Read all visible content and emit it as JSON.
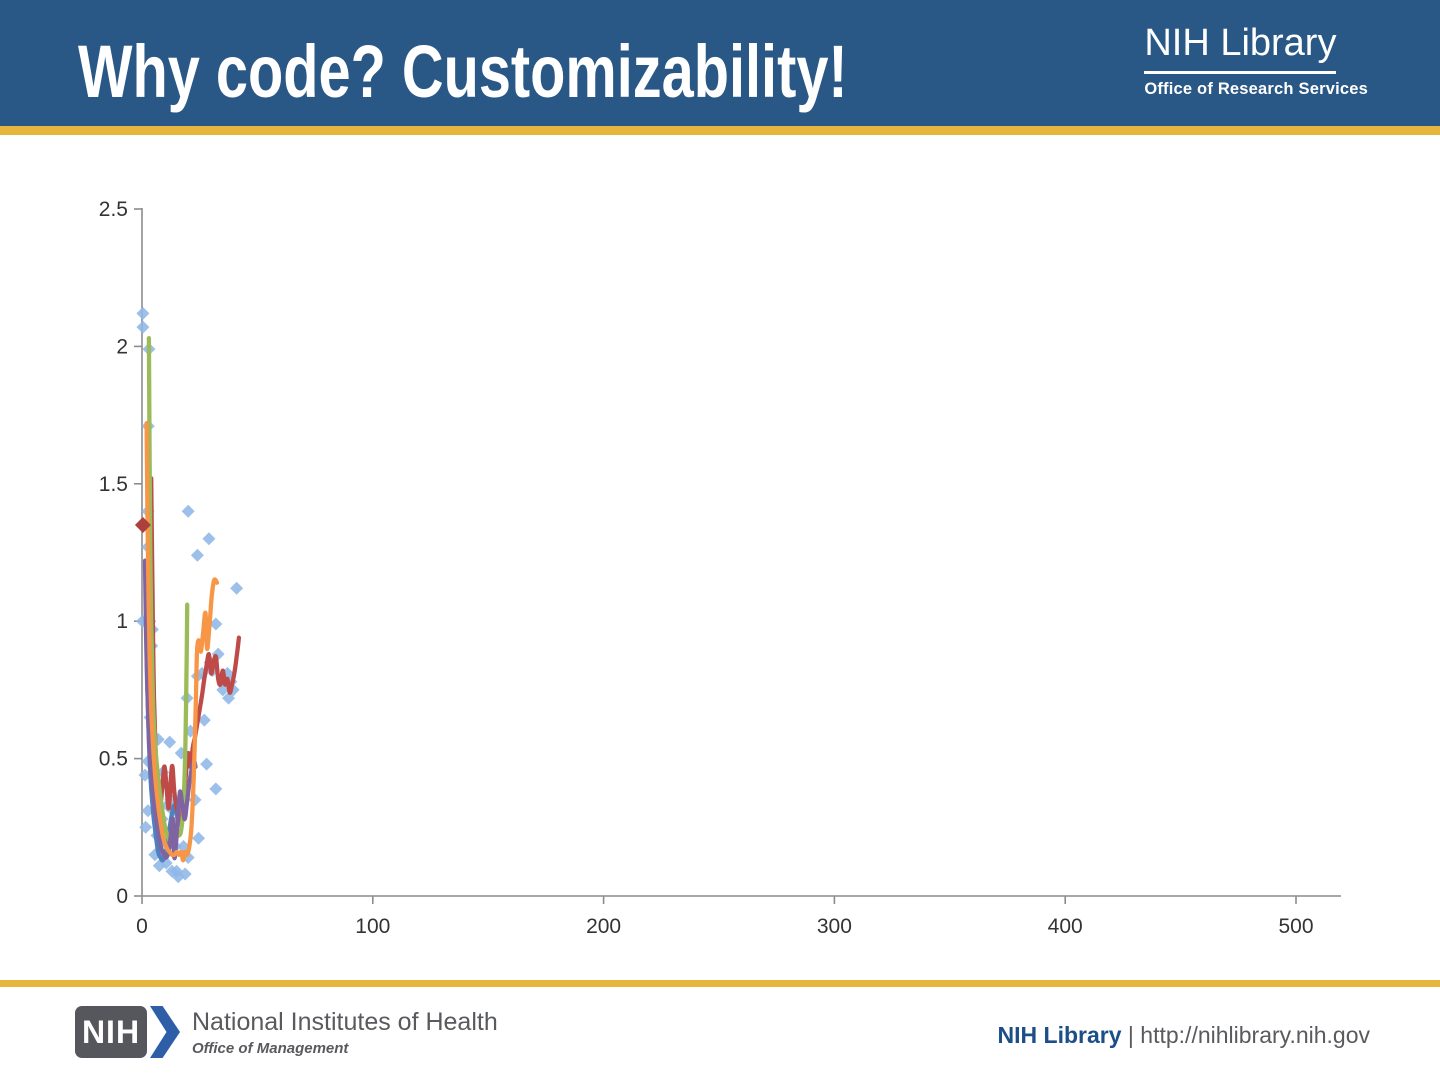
{
  "slide": {
    "title": "Why code? Customizability!",
    "header_logo": {
      "name": "NIH Library",
      "subtitle": "Office of Research Services"
    },
    "footer": {
      "nih_acronym": "NIH",
      "org_name": "National Institutes of Health",
      "org_subtitle": "Office of Management",
      "brand": "NIH Library",
      "separator": " | ",
      "url": "http://nihlibrary.nih.gov"
    },
    "colors": {
      "header_bg": "#2A5886",
      "accent_gold": "#E7B53D",
      "footer_logo_gray": "#56575C",
      "footer_text_gray": "#595A5E",
      "footer_brand_blue": "#1C4E88",
      "nih_chevron_blue": "#2E5EA8"
    }
  },
  "chart_data": {
    "type": "scatter",
    "title": "",
    "xlabel": "",
    "ylabel": "",
    "xlim": [
      0,
      520
    ],
    "ylim": [
      0,
      2.5
    ],
    "grid": false,
    "legend": "none",
    "x_ticks": [
      0,
      100,
      200,
      300,
      400,
      500
    ],
    "x_tick_labels": [
      "0",
      "100",
      "200",
      "300",
      "400",
      "500"
    ],
    "y_ticks": [
      0,
      0.5,
      1,
      1.5,
      2,
      2.5
    ],
    "y_tick_labels": [
      "0",
      "0.5",
      "1",
      "1.5",
      "2",
      "2.5"
    ],
    "axis_color": "#8C8C8C",
    "tick_label_color": "#333333",
    "line_width": 4.3,
    "series": [
      {
        "name": "scatter-observations",
        "type": "scatter",
        "marker": "diamond",
        "marker_half": 6.5,
        "opacity": 0.88,
        "color": "#8EB7E7",
        "points": [
          [
            0.4,
            2.12
          ],
          [
            0.4,
            2.07
          ],
          [
            3,
            1.99
          ],
          [
            2.7,
            1.71
          ],
          [
            2.6,
            1.4
          ],
          [
            2.6,
            1.27
          ],
          [
            0.2,
            1.0
          ],
          [
            3.4,
            1.0
          ],
          [
            4.5,
            0.97
          ],
          [
            4.2,
            0.91
          ],
          [
            3.5,
            0.65
          ],
          [
            2.6,
            0.49
          ],
          [
            1.3,
            0.44
          ],
          [
            2.6,
            0.31
          ],
          [
            1.6,
            0.25
          ],
          [
            5.6,
            0.15
          ],
          [
            6.5,
            0.22
          ],
          [
            7,
            0.57
          ],
          [
            7.5,
            0.11
          ],
          [
            8.7,
            0.28
          ],
          [
            9,
            0.45
          ],
          [
            9.5,
            0.2
          ],
          [
            10.5,
            0.12
          ],
          [
            11,
            0.33
          ],
          [
            12,
            0.56
          ],
          [
            12.5,
            0.35
          ],
          [
            13,
            0.09
          ],
          [
            13.5,
            0.31
          ],
          [
            14.5,
            0.18
          ],
          [
            15,
            0.09
          ],
          [
            15.7,
            0.07
          ],
          [
            16,
            0.28
          ],
          [
            17,
            0.52
          ],
          [
            18,
            0.18
          ],
          [
            18.7,
            0.08
          ],
          [
            19.5,
            0.72
          ],
          [
            20,
            0.14
          ],
          [
            21,
            0.6
          ],
          [
            23,
            0.35
          ],
          [
            20,
            1.4
          ],
          [
            24,
            1.24
          ],
          [
            24,
            0.8
          ],
          [
            24.5,
            0.21
          ],
          [
            26,
            0.81
          ],
          [
            27,
            0.64
          ],
          [
            28,
            0.48
          ],
          [
            29,
            1.3
          ],
          [
            29.5,
            0.85
          ],
          [
            30.5,
            0.82
          ],
          [
            32,
            0.99
          ],
          [
            32,
            0.39
          ],
          [
            33,
            0.88
          ],
          [
            35,
            0.75
          ],
          [
            37,
            0.81
          ],
          [
            37.5,
            0.72
          ],
          [
            38.5,
            0.78
          ],
          [
            39.5,
            0.75
          ],
          [
            41,
            1.12
          ]
        ]
      },
      {
        "name": "line-blue",
        "type": "line",
        "color": "#4F81BD",
        "points": [
          [
            2,
            0.9
          ],
          [
            2.5,
            0.7
          ],
          [
            3,
            0.56
          ],
          [
            3.5,
            0.46
          ],
          [
            4,
            0.39
          ],
          [
            5,
            0.29
          ],
          [
            6,
            0.22
          ],
          [
            7,
            0.16
          ],
          [
            8,
            0.14
          ],
          [
            9,
            0.13
          ],
          [
            10,
            0.15
          ],
          [
            11,
            0.19
          ],
          [
            12,
            0.25
          ],
          [
            13,
            0.3
          ],
          [
            14,
            0.33
          ],
          [
            15,
            0.3
          ],
          [
            16,
            0.26
          ]
        ]
      },
      {
        "name": "line-red",
        "type": "line",
        "color": "#BE4B48",
        "points": [
          [
            4,
            1.52
          ],
          [
            4.4,
            1.2
          ],
          [
            4.8,
            0.92
          ],
          [
            5.2,
            0.72
          ],
          [
            5.8,
            0.55
          ],
          [
            6.5,
            0.42
          ],
          [
            7.2,
            0.35
          ],
          [
            8,
            0.33
          ],
          [
            9,
            0.42
          ],
          [
            9.8,
            0.47
          ],
          [
            10.8,
            0.38
          ],
          [
            11.6,
            0.32
          ],
          [
            12.6,
            0.44
          ],
          [
            13.2,
            0.47
          ],
          [
            14,
            0.38
          ],
          [
            15,
            0.32
          ],
          [
            16,
            0.29
          ],
          [
            17,
            0.28
          ],
          [
            18,
            0.34
          ],
          [
            19,
            0.44
          ],
          [
            20,
            0.52
          ],
          [
            21,
            0.47
          ],
          [
            22,
            0.54
          ],
          [
            23,
            0.58
          ],
          [
            24,
            0.63
          ],
          [
            25,
            0.68
          ],
          [
            26,
            0.73
          ],
          [
            27,
            0.79
          ],
          [
            28,
            0.84
          ],
          [
            29,
            0.88
          ],
          [
            30,
            0.81
          ],
          [
            31,
            0.85
          ],
          [
            32,
            0.87
          ],
          [
            33,
            0.79
          ],
          [
            34,
            0.77
          ],
          [
            35,
            0.82
          ],
          [
            36,
            0.77
          ],
          [
            37,
            0.79
          ],
          [
            38,
            0.74
          ],
          [
            39,
            0.77
          ],
          [
            40,
            0.81
          ],
          [
            41,
            0.87
          ],
          [
            42,
            0.94
          ]
        ]
      },
      {
        "name": "line-green",
        "type": "line",
        "color": "#9BBB59",
        "points": [
          [
            3,
            2.03
          ],
          [
            3.3,
            1.6
          ],
          [
            3.6,
            1.25
          ],
          [
            4,
            1.0
          ],
          [
            4.5,
            0.8
          ],
          [
            5,
            0.66
          ],
          [
            6,
            0.52
          ],
          [
            7,
            0.43
          ],
          [
            8,
            0.36
          ],
          [
            9,
            0.3
          ],
          [
            10,
            0.25
          ],
          [
            11,
            0.22
          ],
          [
            12,
            0.2
          ],
          [
            13,
            0.2
          ],
          [
            14,
            0.21
          ],
          [
            15,
            0.23
          ],
          [
            16,
            0.22
          ],
          [
            17,
            0.24
          ],
          [
            18,
            0.33
          ],
          [
            18.8,
            0.55
          ],
          [
            19.3,
            0.82
          ],
          [
            19.6,
            1.06
          ]
        ]
      },
      {
        "name": "line-purple",
        "type": "line",
        "color": "#8064A2",
        "points": [
          [
            1.3,
            1.22
          ],
          [
            1.7,
            0.98
          ],
          [
            2.2,
            0.78
          ],
          [
            2.8,
            0.62
          ],
          [
            3.5,
            0.5
          ],
          [
            4.5,
            0.4
          ],
          [
            5.5,
            0.32
          ],
          [
            6.5,
            0.26
          ],
          [
            7.5,
            0.21
          ],
          [
            8.5,
            0.17
          ],
          [
            9.5,
            0.15
          ],
          [
            10.5,
            0.14
          ],
          [
            11.5,
            0.16
          ],
          [
            12.5,
            0.22
          ],
          [
            13.3,
            0.28
          ],
          [
            14,
            0.14
          ],
          [
            14.8,
            0.2
          ],
          [
            15.6,
            0.3
          ],
          [
            16.5,
            0.38
          ],
          [
            17.5,
            0.33
          ],
          [
            18.5,
            0.28
          ],
          [
            19.5,
            0.34
          ],
          [
            20.5,
            0.41
          ],
          [
            21.5,
            0.46
          ],
          [
            22.5,
            0.49
          ],
          [
            23.2,
            0.47
          ]
        ]
      },
      {
        "name": "line-orange",
        "type": "line",
        "color": "#F79646",
        "points": [
          [
            2,
            1.72
          ],
          [
            2.4,
            1.38
          ],
          [
            2.8,
            1.1
          ],
          [
            3.3,
            0.88
          ],
          [
            4,
            0.68
          ],
          [
            5,
            0.52
          ],
          [
            6,
            0.41
          ],
          [
            7,
            0.33
          ],
          [
            8,
            0.27
          ],
          [
            9,
            0.22
          ],
          [
            10,
            0.19
          ],
          [
            11,
            0.17
          ],
          [
            12,
            0.16
          ],
          [
            13,
            0.15
          ],
          [
            14,
            0.15
          ],
          [
            15,
            0.16
          ],
          [
            16,
            0.15
          ],
          [
            17,
            0.16
          ],
          [
            17.8,
            0.13
          ],
          [
            18.6,
            0.16
          ],
          [
            19.5,
            0.15
          ],
          [
            20.5,
            0.18
          ],
          [
            21.5,
            0.26
          ],
          [
            22.5,
            0.45
          ],
          [
            23.3,
            0.7
          ],
          [
            23.8,
            0.88
          ],
          [
            24.5,
            0.93
          ],
          [
            25.5,
            0.89
          ],
          [
            26.5,
            0.96
          ],
          [
            27.5,
            1.03
          ],
          [
            28.2,
            0.9
          ],
          [
            29.2,
            0.98
          ],
          [
            30.2,
            1.09
          ],
          [
            31.3,
            1.15
          ],
          [
            32.5,
            1.14
          ]
        ]
      },
      {
        "name": "scatter-highlight",
        "type": "scatter",
        "marker": "diamond",
        "marker_half": 8,
        "opacity": 1,
        "color": "#AC403C",
        "points": [
          [
            0.4,
            1.35
          ]
        ]
      }
    ]
  }
}
